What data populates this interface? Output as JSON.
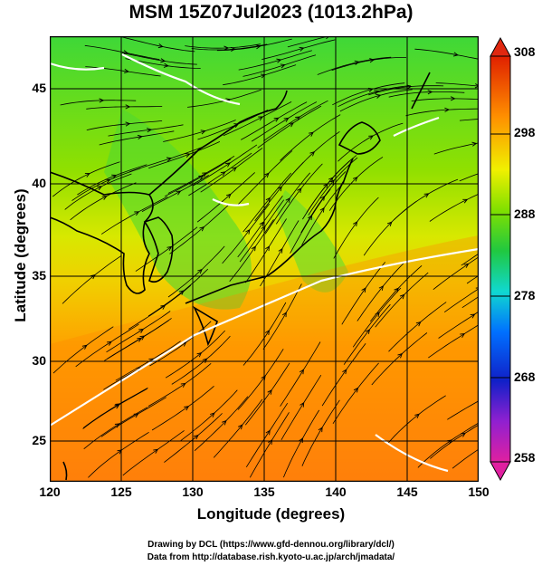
{
  "title": "MSM 15Z07Jul2023 (1013.2hPa)",
  "axes": {
    "xlabel": "Longitude (degrees)",
    "ylabel": "Latitude  (degrees)",
    "xlim": [
      120,
      150
    ],
    "ylim": [
      22.4,
      47.6
    ],
    "xticks": [
      "120",
      "125",
      "130",
      "135",
      "140",
      "145",
      "150"
    ],
    "yticks": [
      "25",
      "30",
      "35",
      "40",
      "45"
    ]
  },
  "colorbar": {
    "ticks": [
      "308",
      "298",
      "288",
      "278",
      "268",
      "258"
    ],
    "range": [
      258,
      308
    ],
    "colors": [
      "#d9108c",
      "#0000c8",
      "#0090ff",
      "#19e2c0",
      "#28cc4c",
      "#f0f000",
      "#ff9600",
      "#e02800"
    ]
  },
  "credits": {
    "line1": "Drawing by DCL (https://www.gfd-dennou.org/library/dcl/)",
    "line2": "Data from http://database.rish.kyoto-u.ac.jp/arch/jmadata/"
  },
  "colors": {
    "cold": "#00cc55",
    "mild": "#c8e800",
    "warm": "#ff8c00",
    "streamline": "#000000",
    "contour": "#ffffff"
  }
}
